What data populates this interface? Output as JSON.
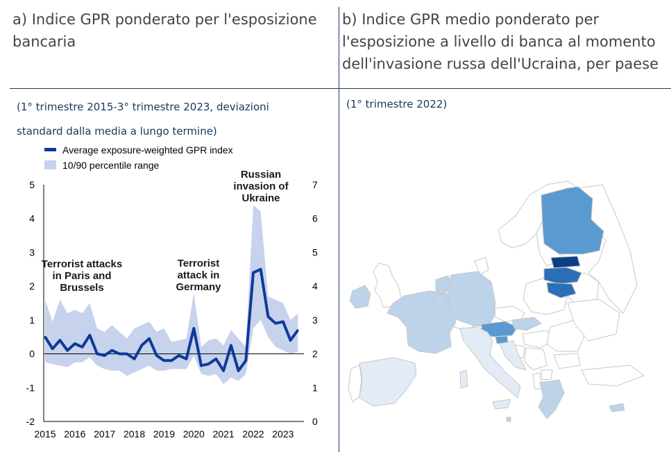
{
  "panels": {
    "a": {
      "title": "a) Indice GPR ponderato per l'esposizione bancaria",
      "subtitle": "(1° trimestre 2015-3° trimestre 2023, deviazioni standard dalla media a lungo termine)"
    },
    "b": {
      "title": "b) Indice GPR medio ponderato per l'esposizione a livello di banca al momento dell'invasione russa dell'Ucraina, per paese",
      "subtitle": "(1° trimestre 2022)"
    }
  },
  "colors": {
    "line": "#0d3a9a",
    "band": "#c7d2ec",
    "divider": "#17375e",
    "map_outline": "#c8c8c8",
    "map_shades": [
      "#e3ebf6",
      "#bcd3ea",
      "#8fbbdf",
      "#5a9ad0",
      "#2a6fb8",
      "#0b3f85"
    ]
  },
  "chart_data": [
    {
      "type": "line",
      "x": [
        "2015Q1",
        "2015Q2",
        "2015Q3",
        "2015Q4",
        "2016Q1",
        "2016Q2",
        "2016Q3",
        "2016Q4",
        "2017Q1",
        "2017Q2",
        "2017Q3",
        "2017Q4",
        "2018Q1",
        "2018Q2",
        "2018Q3",
        "2018Q4",
        "2019Q1",
        "2019Q2",
        "2019Q3",
        "2019Q4",
        "2020Q1",
        "2020Q2",
        "2020Q3",
        "2020Q4",
        "2021Q1",
        "2021Q2",
        "2021Q3",
        "2021Q4",
        "2022Q1",
        "2022Q2",
        "2022Q3",
        "2022Q4",
        "2023Q1",
        "2023Q2",
        "2023Q3"
      ],
      "x_tick_labels": [
        "2015",
        "2016",
        "2017",
        "2018",
        "2019",
        "2020",
        "2021",
        "2022",
        "2023"
      ],
      "series": [
        {
          "name": "Average exposure-weighted GPR index",
          "values": [
            0.5,
            0.15,
            0.4,
            0.1,
            0.3,
            0.2,
            0.55,
            0.0,
            -0.05,
            0.1,
            0.0,
            0.0,
            -0.15,
            0.25,
            0.45,
            -0.05,
            -0.2,
            -0.2,
            -0.05,
            -0.15,
            0.75,
            -0.35,
            -0.3,
            -0.15,
            -0.5,
            0.25,
            -0.5,
            -0.2,
            2.4,
            2.5,
            1.1,
            0.9,
            0.95,
            0.4,
            0.7
          ]
        },
        {
          "name": "10/90 percentile range",
          "upper": [
            1.6,
            0.95,
            1.6,
            1.2,
            1.3,
            1.2,
            1.5,
            0.75,
            0.65,
            0.85,
            0.65,
            0.45,
            0.75,
            0.85,
            0.95,
            0.65,
            0.75,
            0.35,
            0.4,
            0.45,
            1.8,
            0.2,
            0.4,
            0.45,
            0.25,
            0.7,
            0.45,
            0.2,
            4.4,
            4.2,
            1.7,
            1.6,
            1.5,
            1.0,
            1.2
          ],
          "lower": [
            -0.25,
            -0.3,
            -0.35,
            -0.4,
            -0.25,
            -0.25,
            -0.1,
            -0.35,
            -0.45,
            -0.5,
            -0.5,
            -0.65,
            -0.55,
            -0.45,
            -0.35,
            -0.5,
            -0.5,
            -0.45,
            -0.45,
            -0.45,
            -0.05,
            -0.6,
            -0.65,
            -0.6,
            -0.9,
            -0.7,
            -0.8,
            -0.6,
            0.75,
            1.0,
            0.5,
            0.2,
            0.1,
            0.0,
            0.05
          ]
        }
      ],
      "yleft": {
        "ticks": [
          5,
          4,
          3,
          2,
          1,
          0,
          -1,
          -2
        ],
        "ylim": [
          -2,
          5
        ]
      },
      "yright": {
        "ticks": [
          7,
          6,
          5,
          4,
          3,
          2,
          1,
          0
        ],
        "ylim": [
          0,
          7
        ]
      },
      "annotations": [
        {
          "text": [
            "Terrorist attacks",
            "in Paris and",
            "Brussels"
          ],
          "at_x": "2015Q4",
          "at_y": 2.3
        },
        {
          "text": [
            "Terrorist",
            "attack in",
            "Germany"
          ],
          "at_x": "2020Q1",
          "at_y": 2.4
        },
        {
          "text": [
            "Russian",
            "invasion of",
            "Ukraine"
          ],
          "at_x": "2022Q1",
          "at_y": 4.9
        }
      ],
      "legend": "top-left",
      "grid": false
    },
    {
      "type": "choropleth",
      "region": "Europe",
      "shade_levels": [
        "none",
        "very-light",
        "light",
        "medium-light",
        "medium",
        "dark",
        "darkest"
      ],
      "countries": [
        {
          "name": "Estonia",
          "shade": "darkest"
        },
        {
          "name": "Latvia",
          "shade": "dark"
        },
        {
          "name": "Lithuania",
          "shade": "dark"
        },
        {
          "name": "Finland",
          "shade": "medium"
        },
        {
          "name": "Austria",
          "shade": "medium"
        },
        {
          "name": "Slovenia",
          "shade": "medium"
        },
        {
          "name": "Germany",
          "shade": "light"
        },
        {
          "name": "Netherlands",
          "shade": "light"
        },
        {
          "name": "Belgium",
          "shade": "light"
        },
        {
          "name": "Luxembourg",
          "shade": "light"
        },
        {
          "name": "France",
          "shade": "light"
        },
        {
          "name": "Ireland",
          "shade": "light"
        },
        {
          "name": "Slovakia",
          "shade": "light"
        },
        {
          "name": "Cyprus",
          "shade": "light"
        },
        {
          "name": "Malta",
          "shade": "light"
        },
        {
          "name": "Greece",
          "shade": "light"
        },
        {
          "name": "Croatia",
          "shade": "very-light"
        },
        {
          "name": "Italy",
          "shade": "very-light"
        },
        {
          "name": "Spain",
          "shade": "very-light"
        },
        {
          "name": "Portugal",
          "shade": "none"
        }
      ]
    }
  ]
}
